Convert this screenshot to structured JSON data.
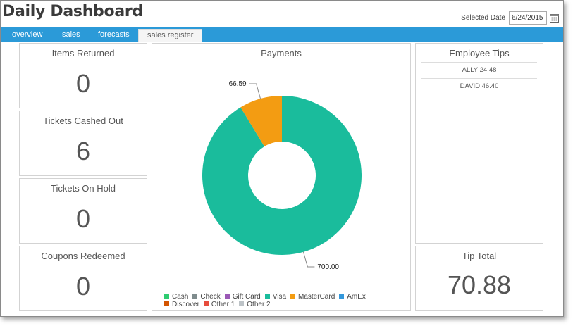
{
  "app": {
    "title": "Daily Dashboard"
  },
  "date": {
    "label": "Selected Date",
    "value": "6/24/2015",
    "icon": "calendar-icon"
  },
  "tabs": [
    {
      "label": "overview",
      "active": false
    },
    {
      "label": "sales",
      "active": false
    },
    {
      "label": "forecasts",
      "active": false
    },
    {
      "label": "sales register",
      "active": true
    }
  ],
  "cards": {
    "items_returned": {
      "title": "Items Returned",
      "value": "0"
    },
    "tickets_cashed_out": {
      "title": "Tickets Cashed Out",
      "value": "6"
    },
    "tickets_on_hold": {
      "title": "Tickets On Hold",
      "value": "0"
    },
    "coupons_redeemed": {
      "title": "Coupons Redeemed",
      "value": "0"
    }
  },
  "employee_tips": {
    "title": "Employee Tips",
    "rows": [
      "ALLY 24.48",
      "DAVID 46.40"
    ]
  },
  "tip_total": {
    "title": "Tip Total",
    "value": "70.88"
  },
  "chart_data": {
    "type": "pie",
    "donut": true,
    "title": "Payments",
    "slices": [
      {
        "label": "Visa",
        "value": 700.0,
        "display": "700.00",
        "color": "#1abc9c"
      },
      {
        "label": "MasterCard",
        "value": 66.59,
        "display": "66.59",
        "color": "#f39c12"
      }
    ],
    "legend": [
      {
        "label": "Cash",
        "color": "#2ecc71"
      },
      {
        "label": "Check",
        "color": "#7f8c8d"
      },
      {
        "label": "Gift Card",
        "color": "#9b59b6"
      },
      {
        "label": "Visa",
        "color": "#1abc9c"
      },
      {
        "label": "MasterCard",
        "color": "#f39c12"
      },
      {
        "label": "AmEx",
        "color": "#3498db"
      },
      {
        "label": "Discover",
        "color": "#d35400"
      },
      {
        "label": "Other 1",
        "color": "#e74c3c"
      },
      {
        "label": "Other 2",
        "color": "#bdc3c7"
      }
    ],
    "legend_position": "bottom"
  }
}
